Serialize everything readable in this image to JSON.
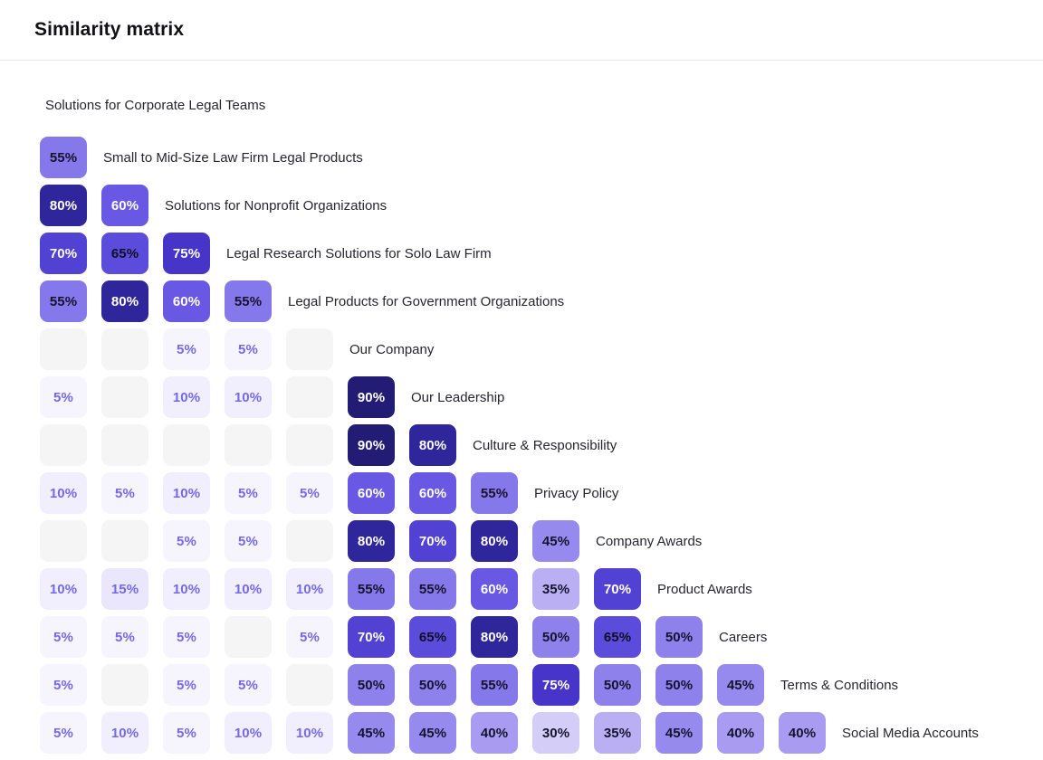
{
  "page": {
    "title": "Similarity matrix"
  },
  "chart_data": {
    "type": "heatmap",
    "title": "Similarity matrix",
    "layout": "lower-triangular",
    "value_unit": "%",
    "items": [
      "Solutions for Corporate Legal Teams",
      "Small to Mid-Size Law Firm Legal Products",
      "Solutions for Nonprofit Organizations",
      "Legal Research Solutions for Solo Law Firm",
      "Legal Products for Government Organizations",
      "Our Company",
      "Our Leadership",
      "Culture & Responsibility",
      "Privacy Policy",
      "Company Awards",
      "Product Awards",
      "Careers",
      "Terms & Conditions",
      "Social Media Accounts"
    ],
    "rows": [
      [],
      [
        55
      ],
      [
        80,
        60
      ],
      [
        70,
        65,
        75
      ],
      [
        55,
        80,
        60,
        55
      ],
      [
        null,
        null,
        5,
        5,
        null
      ],
      [
        5,
        null,
        10,
        10,
        null,
        90
      ],
      [
        null,
        null,
        null,
        null,
        null,
        90,
        80
      ],
      [
        10,
        5,
        10,
        5,
        5,
        60,
        60,
        55
      ],
      [
        null,
        null,
        5,
        5,
        null,
        80,
        70,
        80,
        45
      ],
      [
        10,
        15,
        10,
        10,
        10,
        55,
        55,
        60,
        35,
        70
      ],
      [
        5,
        5,
        5,
        null,
        5,
        70,
        65,
        80,
        50,
        65,
        50
      ],
      [
        5,
        null,
        5,
        5,
        null,
        50,
        50,
        55,
        75,
        50,
        50,
        45
      ],
      [
        5,
        10,
        5,
        10,
        10,
        45,
        45,
        40,
        30,
        35,
        45,
        40,
        40
      ]
    ],
    "empty_cell_color": "#f5f5f6",
    "value_colors": {
      "5": {
        "bg": "#f6f5fe",
        "text": "#7668ea"
      },
      "10": {
        "bg": "#f1effd",
        "text": "#7668ea"
      },
      "15": {
        "bg": "#eae7fc",
        "text": "#7668ea"
      },
      "30": {
        "bg": "#d3cdf8",
        "text": "#15142e"
      },
      "35": {
        "bg": "#bbaff4",
        "text": "#15142e"
      },
      "40": {
        "bg": "#a89bf1",
        "text": "#15142e"
      },
      "45": {
        "bg": "#978aee",
        "text": "#15142e"
      },
      "50": {
        "bg": "#8e81ec",
        "text": "#15142e"
      },
      "55": {
        "bg": "#8578ea",
        "text": "#15142e"
      },
      "60": {
        "bg": "#6858e4",
        "text": "#ffffff"
      },
      "65": {
        "bg": "#5c4cdc",
        "text": "#101024"
      },
      "70": {
        "bg": "#5242d3",
        "text": "#ffffff"
      },
      "75": {
        "bg": "#4635c8",
        "text": "#ffffff"
      },
      "80": {
        "bg": "#30269b",
        "text": "#ffffff"
      },
      "90": {
        "bg": "#221c74",
        "text": "#ffffff"
      }
    }
  }
}
